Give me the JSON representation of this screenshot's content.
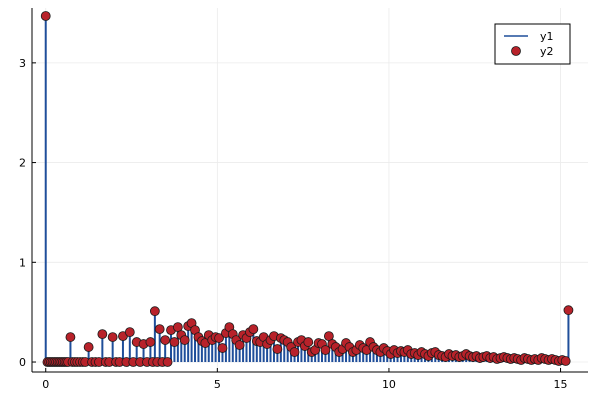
{
  "chart_data": {
    "type": "scatter",
    "title": "",
    "xlabel": "",
    "ylabel": "",
    "xlim": [
      -0.4,
      15.8
    ],
    "ylim": [
      -0.1,
      3.55
    ],
    "x_ticks": [
      0,
      5,
      10,
      15
    ],
    "x_tick_labels": [
      "0",
      "5",
      "10",
      "15"
    ],
    "y_ticks": [
      0,
      1,
      2,
      3
    ],
    "y_tick_labels": [
      "0",
      "1",
      "2",
      "3"
    ],
    "grid": true,
    "legend_position": "top-right",
    "colors": {
      "y1": "#1f4e9a",
      "y2_fill": "#b8222a",
      "y2_stroke": "#1a1a1a",
      "grid": "#ebebeb",
      "axis": "#000000"
    },
    "series": [
      {
        "name": "y1",
        "kind": "stem-line",
        "note": "vertical stems from 0 to each y2 value, same x/y as y2"
      },
      {
        "name": "y2",
        "kind": "scatter",
        "points": [
          [
            0.0,
            3.47
          ],
          [
            0.05,
            0.0
          ],
          [
            0.1,
            0.0
          ],
          [
            0.15,
            0.0
          ],
          [
            0.2,
            0.0
          ],
          [
            0.25,
            0.0
          ],
          [
            0.3,
            0.0
          ],
          [
            0.35,
            0.0
          ],
          [
            0.4,
            0.0
          ],
          [
            0.45,
            0.0
          ],
          [
            0.5,
            0.0
          ],
          [
            0.55,
            0.0
          ],
          [
            0.6,
            0.0
          ],
          [
            0.65,
            0.0
          ],
          [
            0.72,
            0.25
          ],
          [
            0.78,
            0.0
          ],
          [
            0.85,
            0.0
          ],
          [
            0.92,
            0.0
          ],
          [
            1.0,
            0.0
          ],
          [
            1.08,
            0.0
          ],
          [
            1.15,
            0.0
          ],
          [
            1.25,
            0.15
          ],
          [
            1.35,
            0.0
          ],
          [
            1.45,
            0.0
          ],
          [
            1.55,
            0.0
          ],
          [
            1.65,
            0.28
          ],
          [
            1.75,
            0.0
          ],
          [
            1.85,
            0.0
          ],
          [
            1.95,
            0.25
          ],
          [
            2.05,
            0.0
          ],
          [
            2.15,
            0.0
          ],
          [
            2.25,
            0.26
          ],
          [
            2.35,
            0.0
          ],
          [
            2.45,
            0.3
          ],
          [
            2.55,
            0.0
          ],
          [
            2.65,
            0.2
          ],
          [
            2.75,
            0.0
          ],
          [
            2.85,
            0.18
          ],
          [
            2.95,
            0.0
          ],
          [
            3.05,
            0.2
          ],
          [
            3.12,
            0.0
          ],
          [
            3.18,
            0.51
          ],
          [
            3.25,
            0.0
          ],
          [
            3.32,
            0.33
          ],
          [
            3.4,
            0.0
          ],
          [
            3.48,
            0.22
          ],
          [
            3.55,
            0.0
          ],
          [
            3.65,
            0.32
          ],
          [
            3.75,
            0.2
          ],
          [
            3.85,
            0.35
          ],
          [
            3.95,
            0.27
          ],
          [
            4.05,
            0.22
          ],
          [
            4.15,
            0.36
          ],
          [
            4.25,
            0.39
          ],
          [
            4.35,
            0.32
          ],
          [
            4.45,
            0.25
          ],
          [
            4.55,
            0.21
          ],
          [
            4.65,
            0.19
          ],
          [
            4.75,
            0.27
          ],
          [
            4.85,
            0.22
          ],
          [
            4.95,
            0.25
          ],
          [
            5.05,
            0.24
          ],
          [
            5.15,
            0.14
          ],
          [
            5.25,
            0.29
          ],
          [
            5.35,
            0.35
          ],
          [
            5.45,
            0.28
          ],
          [
            5.55,
            0.22
          ],
          [
            5.65,
            0.17
          ],
          [
            5.75,
            0.27
          ],
          [
            5.85,
            0.24
          ],
          [
            5.95,
            0.3
          ],
          [
            6.05,
            0.33
          ],
          [
            6.15,
            0.21
          ],
          [
            6.25,
            0.2
          ],
          [
            6.35,
            0.25
          ],
          [
            6.45,
            0.18
          ],
          [
            6.55,
            0.22
          ],
          [
            6.65,
            0.26
          ],
          [
            6.75,
            0.13
          ],
          [
            6.85,
            0.24
          ],
          [
            6.95,
            0.22
          ],
          [
            7.05,
            0.2
          ],
          [
            7.15,
            0.15
          ],
          [
            7.25,
            0.1
          ],
          [
            7.35,
            0.2
          ],
          [
            7.45,
            0.22
          ],
          [
            7.55,
            0.16
          ],
          [
            7.65,
            0.2
          ],
          [
            7.75,
            0.1
          ],
          [
            7.85,
            0.12
          ],
          [
            7.95,
            0.19
          ],
          [
            8.05,
            0.18
          ],
          [
            8.15,
            0.12
          ],
          [
            8.25,
            0.26
          ],
          [
            8.35,
            0.18
          ],
          [
            8.45,
            0.15
          ],
          [
            8.55,
            0.1
          ],
          [
            8.65,
            0.13
          ],
          [
            8.75,
            0.19
          ],
          [
            8.85,
            0.15
          ],
          [
            8.95,
            0.1
          ],
          [
            9.05,
            0.12
          ],
          [
            9.15,
            0.17
          ],
          [
            9.25,
            0.14
          ],
          [
            9.35,
            0.12
          ],
          [
            9.45,
            0.2
          ],
          [
            9.55,
            0.15
          ],
          [
            9.65,
            0.12
          ],
          [
            9.75,
            0.1
          ],
          [
            9.85,
            0.14
          ],
          [
            9.95,
            0.11
          ],
          [
            10.05,
            0.08
          ],
          [
            10.15,
            0.12
          ],
          [
            10.25,
            0.09
          ],
          [
            10.35,
            0.11
          ],
          [
            10.45,
            0.1
          ],
          [
            10.55,
            0.12
          ],
          [
            10.65,
            0.08
          ],
          [
            10.75,
            0.09
          ],
          [
            10.85,
            0.07
          ],
          [
            10.95,
            0.1
          ],
          [
            11.05,
            0.08
          ],
          [
            11.15,
            0.06
          ],
          [
            11.25,
            0.09
          ],
          [
            11.35,
            0.1
          ],
          [
            11.45,
            0.07
          ],
          [
            11.55,
            0.06
          ],
          [
            11.65,
            0.05
          ],
          [
            11.75,
            0.08
          ],
          [
            11.85,
            0.06
          ],
          [
            11.95,
            0.07
          ],
          [
            12.05,
            0.05
          ],
          [
            12.15,
            0.06
          ],
          [
            12.25,
            0.08
          ],
          [
            12.35,
            0.06
          ],
          [
            12.45,
            0.05
          ],
          [
            12.55,
            0.06
          ],
          [
            12.65,
            0.04
          ],
          [
            12.75,
            0.05
          ],
          [
            12.85,
            0.06
          ],
          [
            12.95,
            0.04
          ],
          [
            13.05,
            0.05
          ],
          [
            13.15,
            0.03
          ],
          [
            13.25,
            0.04
          ],
          [
            13.35,
            0.05
          ],
          [
            13.45,
            0.04
          ],
          [
            13.55,
            0.03
          ],
          [
            13.65,
            0.04
          ],
          [
            13.75,
            0.03
          ],
          [
            13.85,
            0.02
          ],
          [
            13.95,
            0.04
          ],
          [
            14.05,
            0.03
          ],
          [
            14.15,
            0.02
          ],
          [
            14.25,
            0.03
          ],
          [
            14.35,
            0.02
          ],
          [
            14.45,
            0.04
          ],
          [
            14.55,
            0.03
          ],
          [
            14.65,
            0.02
          ],
          [
            14.75,
            0.03
          ],
          [
            14.85,
            0.02
          ],
          [
            14.95,
            0.01
          ],
          [
            15.05,
            0.02
          ],
          [
            15.15,
            0.01
          ],
          [
            15.23,
            0.52
          ]
        ]
      }
    ]
  }
}
